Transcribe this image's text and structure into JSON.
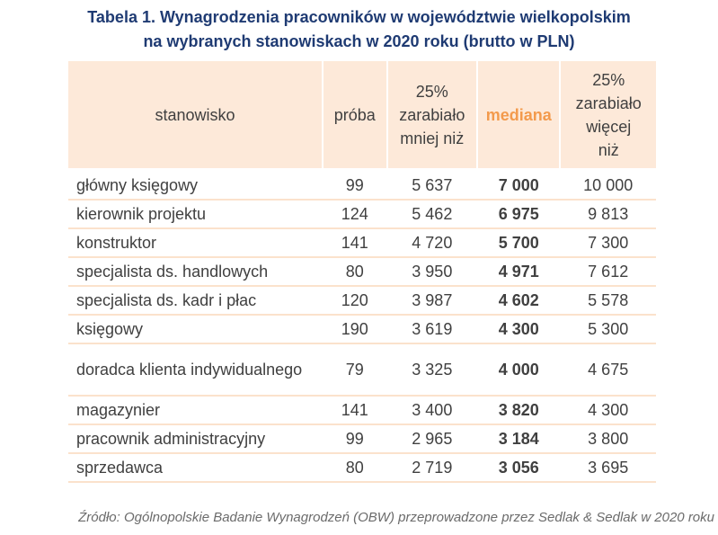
{
  "title_line1": "Tabela 1. Wynagrodzenia pracowników w województwie wielkopolskim",
  "title_line2": "na wybranych stanowiskach w 2020 roku (brutto w PLN)",
  "headers": [
    "stanowisko",
    "próba",
    "25% zarabiało mniej niż",
    "mediana",
    "25% zarabiało więcej niż"
  ],
  "accent_color": "#f39a4c",
  "rows": [
    [
      "główny księgowy",
      "99",
      "5 637",
      "7 000",
      "10 000"
    ],
    [
      "kierownik projektu",
      "124",
      "5 462",
      "6 975",
      "9 813"
    ],
    [
      "konstruktor",
      "141",
      "4 720",
      "5 700",
      "7 300"
    ],
    [
      "specjalista ds. handlowych",
      "80",
      "3 950",
      "4 971",
      "7 612"
    ],
    [
      "specjalista ds. kadr i płac",
      "120",
      "3 987",
      "4 602",
      "5 578"
    ],
    [
      "księgowy",
      "190",
      "3 619",
      "4 300",
      "5 300"
    ],
    [
      "doradca klienta indywidualnego",
      "79",
      "3 325",
      "4 000",
      "4 675"
    ],
    [
      "magazynier",
      "141",
      "3 400",
      "3 820",
      "4 300"
    ],
    [
      "pracownik administracyjny",
      "99",
      "2 965",
      "3 184",
      "3 800"
    ],
    [
      "sprzedawca",
      "80",
      "2 719",
      "3 056",
      "3 695"
    ]
  ],
  "source": "Źródło: Ogólnopolskie Badanie Wynagrodzeń (OBW) przeprowadzone przez Sedlak & Sedlak w 2020 roku"
}
